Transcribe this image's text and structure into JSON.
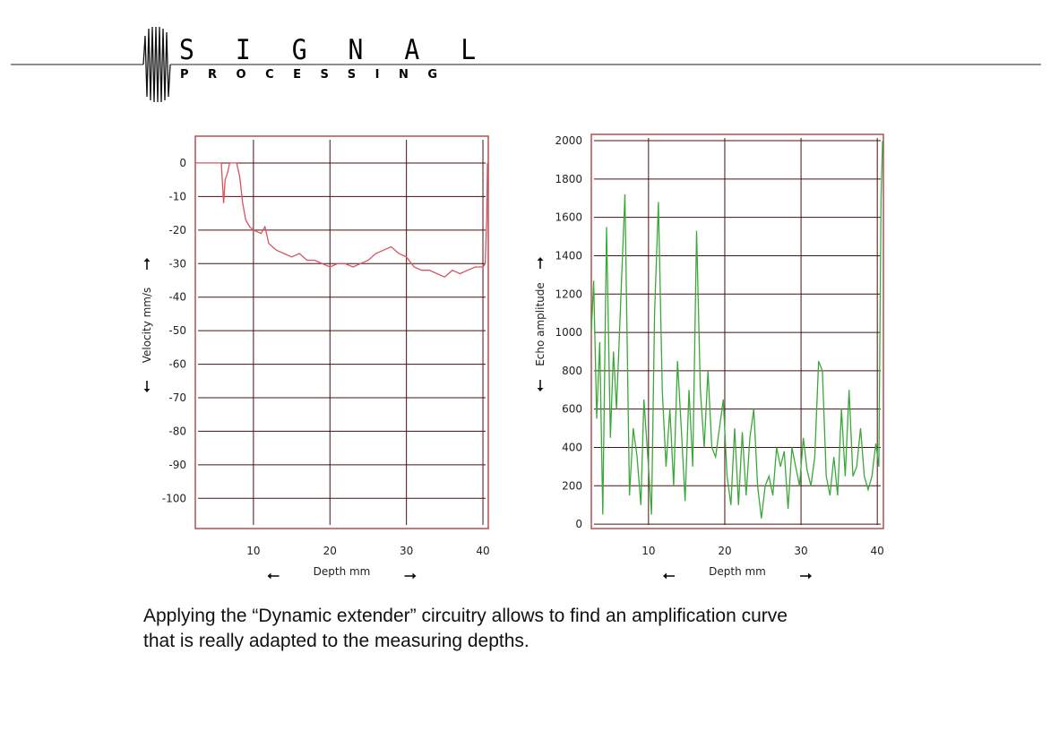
{
  "header": {
    "logo_top": "SIGNAL",
    "logo_bottom": "PROCESSING"
  },
  "chart_data": [
    {
      "type": "line",
      "xlabel": "Depth mm",
      "ylabel": "Velocity mm/s",
      "color": "#d9535f",
      "grid": true,
      "xlim": [
        2.4,
        40.7
      ],
      "xticks": [
        10,
        20,
        30,
        40
      ],
      "ylim": [
        -109,
        8
      ],
      "yticks": [
        0,
        -10,
        -20,
        -30,
        -40,
        -50,
        -60,
        -70,
        -80,
        -90,
        -100
      ],
      "x": [
        2.4,
        3,
        4,
        5,
        5.8,
        6.1,
        6.3,
        6.6,
        6.9,
        7.3,
        7.8,
        8.2,
        8.6,
        9,
        9.5,
        10,
        11,
        11.5,
        12,
        13,
        14,
        15,
        16,
        17,
        18,
        19,
        20,
        21,
        22,
        23,
        24,
        25,
        26,
        27,
        28,
        29,
        30,
        31,
        32,
        33,
        34,
        35,
        36,
        37,
        38,
        39,
        40,
        40.3,
        40.5,
        40.6
      ],
      "values": [
        0,
        0,
        0,
        0,
        0,
        -12,
        -5,
        -3,
        0,
        0,
        0,
        -4,
        -12,
        -17,
        -19,
        -20,
        -21,
        -19,
        -24,
        -26,
        -27,
        -28,
        -27,
        -29,
        -29,
        -30,
        -31,
        -30,
        -30,
        -31,
        -30,
        -29,
        -27,
        -26,
        -25,
        -27,
        -28,
        -31,
        -32,
        -32,
        -33,
        -34,
        -32,
        -33,
        -32,
        -31,
        -31,
        -30,
        -16,
        0
      ]
    },
    {
      "type": "line",
      "xlabel": "Depth mm",
      "ylabel": "Echo amplitude",
      "color": "#3aa83a",
      "grid": true,
      "xlim": [
        2.5,
        40.8
      ],
      "xticks": [
        10,
        20,
        30,
        40
      ],
      "ylim": [
        -23,
        2033
      ],
      "yticks": [
        0,
        200,
        400,
        600,
        800,
        1000,
        1200,
        1400,
        1600,
        1800,
        2000
      ],
      "x": [
        2.5,
        2.8,
        3.2,
        3.6,
        4,
        4.5,
        5,
        5.4,
        5.8,
        6.3,
        6.9,
        7.5,
        8,
        8.5,
        9,
        9.4,
        10,
        10.4,
        10.8,
        11.3,
        11.8,
        12.3,
        12.8,
        13.3,
        13.8,
        14.3,
        14.8,
        15.3,
        15.8,
        16.3,
        16.8,
        17.3,
        17.8,
        18.3,
        18.8,
        19.3,
        19.8,
        20.3,
        20.8,
        21.3,
        21.8,
        22.3,
        22.8,
        23.3,
        23.8,
        24.3,
        24.8,
        25.3,
        25.8,
        26.3,
        26.8,
        27.3,
        27.8,
        28.3,
        28.8,
        29.3,
        29.8,
        30.3,
        30.8,
        31.3,
        31.8,
        32.3,
        32.8,
        33.3,
        33.8,
        34.3,
        34.8,
        35.3,
        35.8,
        36.3,
        36.8,
        37.3,
        37.8,
        38.3,
        38.8,
        39.3,
        39.8,
        40.2,
        40.5,
        40.7
      ],
      "values": [
        1000,
        1270,
        550,
        950,
        50,
        1550,
        450,
        900,
        600,
        1100,
        1720,
        150,
        500,
        350,
        100,
        650,
        300,
        50,
        1100,
        1680,
        700,
        300,
        600,
        200,
        850,
        500,
        120,
        700,
        300,
        1530,
        700,
        400,
        800,
        400,
        350,
        500,
        650,
        250,
        100,
        500,
        100,
        480,
        150,
        450,
        600,
        200,
        30,
        200,
        250,
        150,
        400,
        300,
        380,
        80,
        400,
        300,
        200,
        450,
        280,
        200,
        350,
        850,
        800,
        250,
        150,
        350,
        150,
        600,
        250,
        700,
        250,
        300,
        500,
        250,
        180,
        250,
        420,
        300,
        1700,
        2000
      ]
    }
  ],
  "caption": [
    "Applying the “Dynamic extender” circuitry allows to find an amplification curve",
    "that is really adapted to the measuring depths."
  ]
}
